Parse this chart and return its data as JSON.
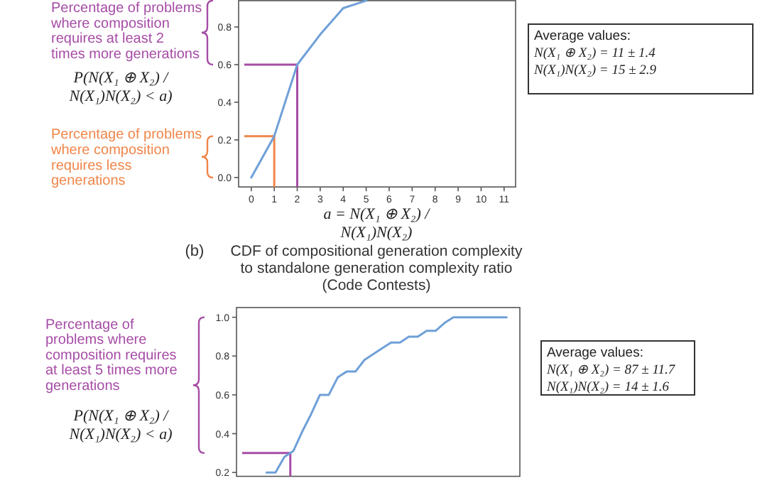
{
  "chart_data": [
    {
      "type": "line",
      "xlabel": "a = N(X₁ ⊕ X₂) / N(X₁)N(X₂)",
      "ylabel": "P(N(X₁ ⊕ X₂) / N(X₁)N(X₂) < a)",
      "x": [
        0,
        1,
        2,
        3,
        4,
        5
      ],
      "series": [
        {
          "color": "#6fa0d8",
          "values": [
            0,
            0.22,
            0.6,
            0.76,
            0.9,
            0.94
          ]
        }
      ],
      "xlim": [
        -0.55,
        11.5
      ],
      "ylim": [
        -0.05,
        0.94
      ],
      "xticks": [
        0,
        1,
        2,
        3,
        4,
        5,
        6,
        7,
        8,
        9,
        10,
        11
      ],
      "yticks": [
        {
          "value": 0,
          "label": "0.0"
        },
        {
          "value": 0.2,
          "label": "0.2"
        },
        {
          "value": 0.4,
          "label": "0.4"
        },
        {
          "value": 0.6,
          "label": "0.6"
        },
        {
          "value": 0.8,
          "label": "0.8"
        }
      ],
      "ref_lines": [
        {
          "axis": "y",
          "value": 0.6,
          "color": "#a64ca6"
        },
        {
          "axis": "y",
          "value": 0.22,
          "color": "#f0864a"
        }
      ],
      "annotations": [
        "Percentage of problems where composition requires at least 2 times more generations",
        "Percentage of problems where composition requires less generations",
        "Average values:",
        "N(X₁ ⊕ X₂) = 11 ± 1.4",
        "N(X₁)N(X₂) = 15 ± 2.9"
      ]
    },
    {
      "type": "line",
      "title": "CDF of compositional generation complexity to standalone generation complexity ratio (Code Contests)",
      "ylabel": "P(N(X₁ ⊕ X₂) / N(X₁)N(X₂) < a)",
      "categories": [
        null,
        null,
        null,
        null,
        null,
        null,
        null,
        null,
        null,
        null,
        null,
        null,
        null,
        null,
        null,
        null,
        null,
        null,
        null,
        null,
        null,
        null,
        null,
        null,
        null,
        null,
        null,
        null
      ],
      "series": [
        {
          "color": "#6fa0d8",
          "values": [
            0.2,
            0.2,
            0.28,
            0.31,
            0.41,
            0.5,
            0.6,
            0.6,
            0.69,
            0.72,
            0.72,
            0.78,
            0.81,
            0.84,
            0.87,
            0.87,
            0.9,
            0.9,
            0.93,
            0.93,
            0.97,
            1,
            1,
            1,
            1,
            1,
            1,
            1
          ]
        }
      ],
      "ylim": [
        0.18,
        1.05
      ],
      "yticks": [
        {
          "value": 0.2,
          "label": "0.2"
        },
        {
          "value": 0.4,
          "label": "0.4"
        },
        {
          "value": 0.6,
          "label": "0.6"
        },
        {
          "value": 0.8,
          "label": "0.8"
        },
        {
          "value": 1,
          "label": "1.0"
        }
      ],
      "tick_labels": "y",
      "ref_lines": [
        {
          "axis": "y",
          "value": 0.3,
          "color": "#a64ca6"
        }
      ],
      "annotations": [
        "Percentage of problems where composition requires at least 5 times more generations",
        "Average values:",
        "N(X₁ ⊕ X₂) = 87 ± 11.7",
        "N(X₁)N(X₂) = 14 ± 1.6",
        "(b)"
      ]
    }
  ]
}
